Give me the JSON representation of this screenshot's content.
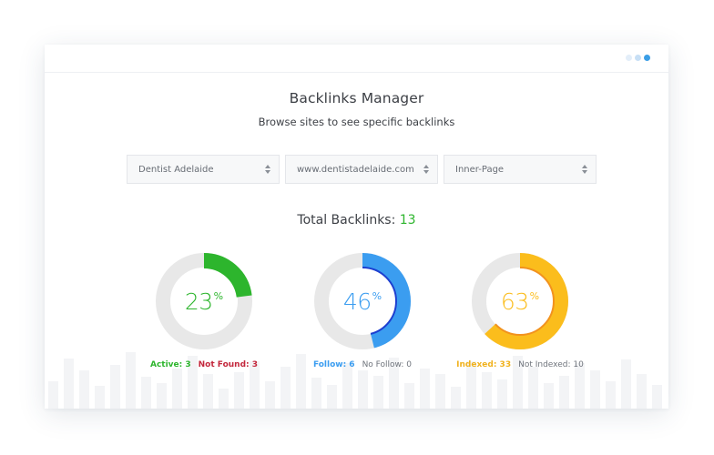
{
  "header": {
    "title": "Backlinks Manager",
    "subtitle": "Browse sites to see specific backlinks"
  },
  "window_dots": [
    "#e3eef9",
    "#c7dff5",
    "#3a9ee6"
  ],
  "filters": [
    {
      "value": "Dentist Adelaide"
    },
    {
      "value": "www.dentistadelaide.com"
    },
    {
      "value": "Inner-Page"
    }
  ],
  "summary": {
    "label": "Total Backlinks:",
    "count": "13"
  },
  "gauges": [
    {
      "percent": 23,
      "percent_text": "23",
      "symbol": "%",
      "color": "#2db52d",
      "inner_color": "#2db52d",
      "legend": [
        {
          "text": "Active: 3",
          "color": "#2db52d"
        },
        {
          "text": "Not Found: 3",
          "color": "#c3273c"
        }
      ]
    },
    {
      "percent": 46,
      "percent_text": "46",
      "symbol": "%",
      "color": "#3b9df0",
      "inner_color": "#1d3fd0",
      "legend": [
        {
          "text": "Follow: 6",
          "color": "#3b9df0"
        },
        {
          "text": "No Follow: 0",
          "color": "#6f747c"
        }
      ]
    },
    {
      "percent": 63,
      "percent_text": "63",
      "symbol": "%",
      "color": "#fbbd1c",
      "inner_color": "#f2921e",
      "legend": [
        {
          "text": "Indexed: 33",
          "color": "#f0b21e"
        },
        {
          "text": "Not Indexed: 10",
          "color": "#6f747c"
        }
      ]
    }
  ]
}
